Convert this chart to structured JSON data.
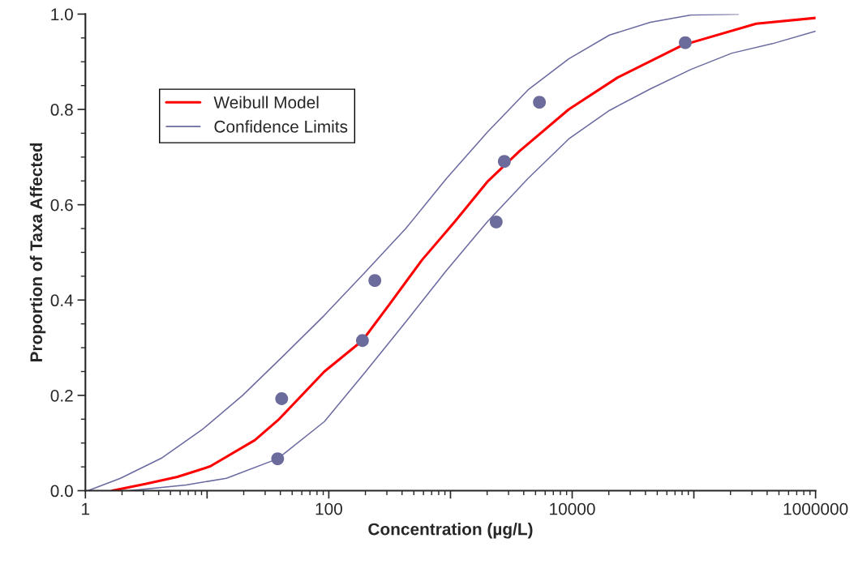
{
  "chart_data": {
    "type": "line",
    "xlabel": "Concentration (µg/L)",
    "ylabel": "Proportion of Taxa Affected",
    "log": "x",
    "xlim": [
      1,
      1000000
    ],
    "xticks": [
      1,
      {
        "value": 10,
        "label": null
      },
      100,
      {
        "value": 1000,
        "label": null
      },
      10000,
      {
        "value": 100000,
        "label": null
      },
      1000000
    ],
    "ylim": [
      0,
      1
    ],
    "yticks": [
      {
        "value": 0,
        "label": "0.0"
      },
      0.2,
      0.4,
      0.6,
      0.8,
      {
        "value": 1,
        "label": "1.0"
      }
    ],
    "grid": false,
    "legend": "top left",
    "marker": "none",
    "line_style": "solid",
    "series": [
      {
        "name": "Weibull Model",
        "color": "#ff0000",
        "x": [
          1.66,
          3.1,
          5.7,
          10.6,
          24.7,
          39,
          92,
          189,
          315,
          583,
          1082,
          2005,
          3715,
          9370,
          23650,
          81000,
          325000,
          1000000
        ],
        "values": [
          0,
          0.014,
          0.029,
          0.051,
          0.106,
          0.15,
          0.25,
          0.315,
          0.391,
          0.484,
          0.564,
          0.648,
          0.713,
          0.8,
          0.867,
          0.935,
          0.98,
          0.992
        ]
      },
      {
        "name": "Confidence Limits",
        "color": "#6a6aa0",
        "x": [
          1.05,
          1.94,
          4.2,
          9.1,
          19.6,
          42,
          92,
          198,
          429,
          927,
          2005,
          4335,
          9370,
          20270,
          43850,
          94700,
          232000
        ],
        "values": [
          0,
          0.026,
          0.068,
          0.128,
          0.2,
          0.282,
          0.368,
          0.458,
          0.55,
          0.655,
          0.752,
          0.841,
          0.906,
          0.956,
          0.983,
          0.998,
          1.0
        ]
      },
      {
        "color": "#6a6aa0",
        "x": [
          2.3,
          6.7,
          14.4,
          38,
          92,
          198,
          429,
          927,
          2005,
          4335,
          9370,
          20270,
          43850,
          94700,
          205000,
          443000,
          1000000
        ],
        "values": [
          0,
          0.012,
          0.026,
          0.067,
          0.145,
          0.248,
          0.354,
          0.462,
          0.564,
          0.655,
          0.738,
          0.798,
          0.843,
          0.884,
          0.918,
          0.938,
          0.964
        ]
      },
      {
        "type": "scatter",
        "marker": "circle",
        "color": "#6b6b9c",
        "x": [
          41,
          38,
          239,
          189,
          2375,
          2770,
          5380,
          85000
        ],
        "values": [
          0.193,
          0.067,
          0.441,
          0.315,
          0.564,
          0.691,
          0.815,
          0.94
        ]
      }
    ]
  }
}
